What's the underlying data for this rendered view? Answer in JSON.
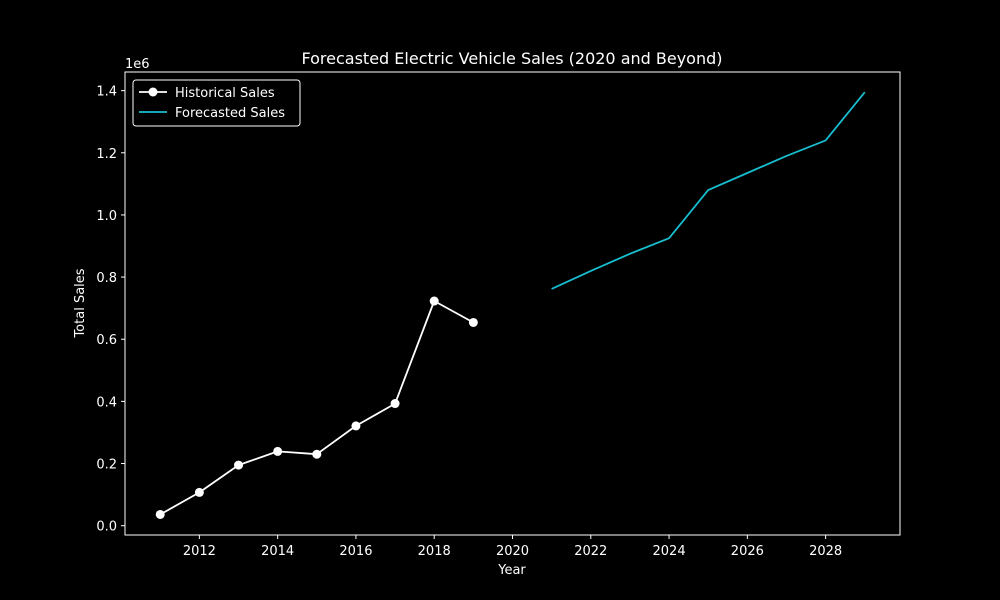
{
  "chart_data": {
    "type": "line",
    "title": "Forecasted Electric Vehicle Sales (2020 and Beyond)",
    "xlabel": "Year",
    "ylabel": "Total Sales",
    "y_scale_label": "1e6",
    "xlim": [
      2010.1,
      2029.9
    ],
    "ylim": [
      -30000,
      1460000
    ],
    "x_ticks": [
      2012,
      2014,
      2016,
      2018,
      2020,
      2022,
      2024,
      2026,
      2028
    ],
    "y_ticks": [
      0,
      200000,
      400000,
      600000,
      800000,
      1000000,
      1200000,
      1400000
    ],
    "y_tick_labels": [
      "0.0",
      "0.2",
      "0.4",
      "0.6",
      "0.8",
      "1.0",
      "1.2",
      "1.4"
    ],
    "grid": false,
    "legend_position": "top-left",
    "series": [
      {
        "name": "Historical Sales",
        "color": "#ffffff",
        "marker": "circle",
        "x": [
          2011,
          2012,
          2013,
          2014,
          2015,
          2016,
          2017,
          2018,
          2019
        ],
        "values": [
          36000,
          107000,
          195000,
          239000,
          230000,
          321000,
          393000,
          723000,
          654000
        ]
      },
      {
        "name": "Forecasted Sales",
        "color": "#17becf",
        "marker": "none",
        "x": [
          2021,
          2022,
          2023,
          2024,
          2025,
          2026,
          2027,
          2028,
          2029
        ],
        "values": [
          762000,
          820000,
          875000,
          925000,
          1080000,
          1135000,
          1190000,
          1240000,
          1395000
        ]
      }
    ]
  }
}
